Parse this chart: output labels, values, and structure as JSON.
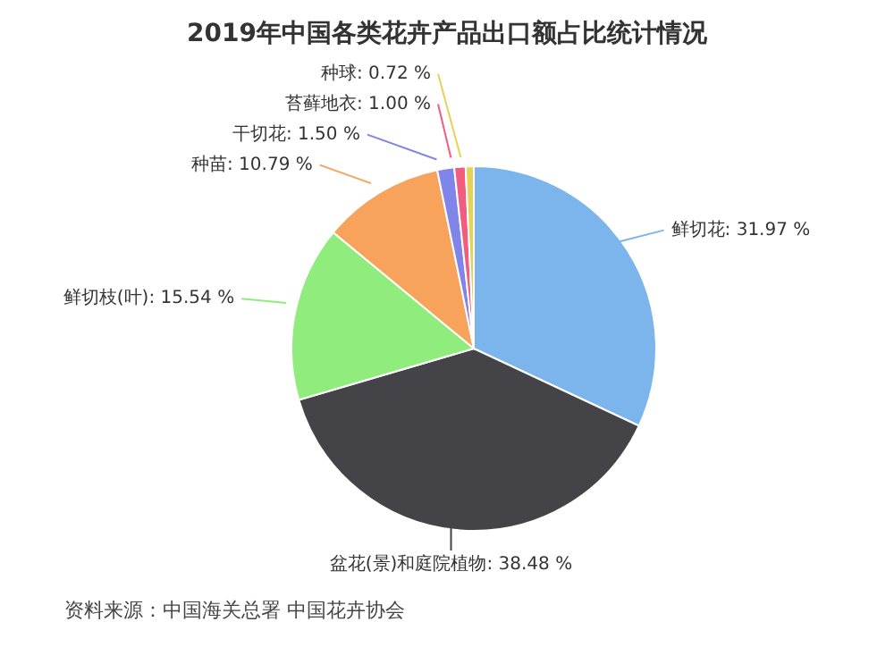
{
  "chart_data": {
    "type": "pie",
    "title": "2019年中国各类花卉产品出口额占比统计情况",
    "categories": [
      "鲜切花",
      "盆花(景)和庭院植物",
      "鲜切枝(叶)",
      "种苗",
      "干切花",
      "苔藓地衣",
      "种球"
    ],
    "values": [
      31.97,
      38.48,
      15.54,
      10.79,
      1.5,
      1.0,
      0.72
    ],
    "value_labels": [
      "31.97 %",
      "38.48 %",
      "15.54 %",
      "10.79 %",
      "1.50 %",
      "1.00 %",
      "0.72 %"
    ],
    "colors": [
      "#7cb5ec",
      "#434348",
      "#90ed7d",
      "#f7a35c",
      "#8085e9",
      "#f15c80",
      "#e4d354"
    ],
    "annotations": [
      "资料来源：中国海关总署 中国花卉协会"
    ]
  }
}
